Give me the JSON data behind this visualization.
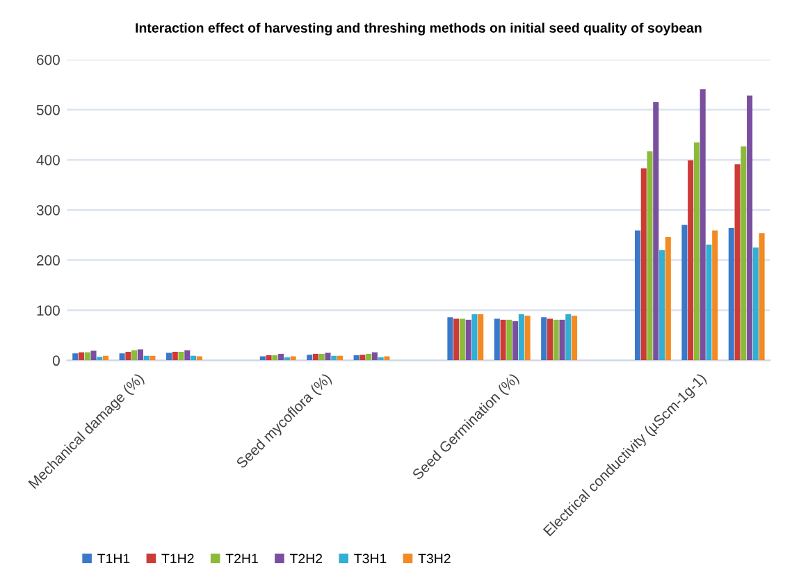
{
  "chart_data": {
    "type": "bar",
    "title": "Interaction effect of harvesting and threshing methods on initial seed quality of soybean",
    "categories": [
      null,
      "Mechanical damage (%)",
      null,
      null,
      null,
      "Seed mycoflora (%)",
      null,
      null,
      null,
      "Seed Germination (%)",
      null,
      null,
      null,
      "Electrical conductivity (µScm-1g-1)",
      null
    ],
    "series": [
      {
        "name": "T1H1",
        "color": "#3a78c9",
        "values": [
          14,
          14,
          15,
          null,
          8,
          11,
          10,
          null,
          86,
          83,
          86,
          null,
          259,
          270,
          264
        ]
      },
      {
        "name": "T1H2",
        "color": "#cc3b35",
        "values": [
          16,
          17,
          17,
          null,
          10,
          13,
          11,
          null,
          83,
          81,
          83,
          null,
          383,
          399,
          391
        ]
      },
      {
        "name": "T2H1",
        "color": "#8cbb3a",
        "values": [
          16,
          20,
          17,
          null,
          10,
          13,
          13,
          null,
          83,
          81,
          81,
          null,
          417,
          435,
          427
        ]
      },
      {
        "name": "T2H2",
        "color": "#7a4fa0",
        "values": [
          19,
          22,
          20,
          null,
          13,
          15,
          16,
          null,
          81,
          78,
          81,
          null,
          515,
          541,
          528
        ]
      },
      {
        "name": "T3H1",
        "color": "#33afd3",
        "values": [
          7,
          9,
          9,
          null,
          6,
          9,
          6,
          null,
          92,
          92,
          92,
          null,
          220,
          231,
          225
        ]
      },
      {
        "name": "T3H2",
        "color": "#f38a23",
        "values": [
          9,
          9,
          8,
          null,
          8,
          9,
          8,
          null,
          92,
          89,
          89,
          null,
          246,
          259,
          254
        ]
      }
    ],
    "ylim": [
      0,
      600
    ],
    "yticks": [
      0,
      100,
      200,
      300,
      400,
      500,
      600
    ],
    "grid": "y",
    "legend": "bottom"
  }
}
